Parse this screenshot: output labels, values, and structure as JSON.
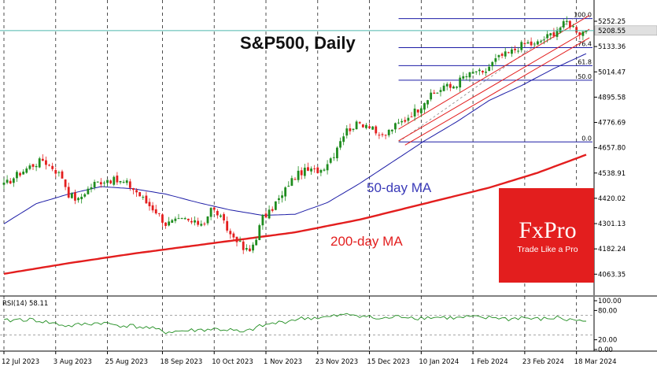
{
  "chart_data": {
    "type": "candlestick",
    "title": "S&P500, Daily",
    "price_axis": {
      "ticks": [
        "5252.25",
        "5133.36",
        "5014.47",
        "4895.58",
        "4776.69",
        "4657.80",
        "4538.91",
        "4420.02",
        "4301.13",
        "4182.24",
        "4063.35"
      ],
      "tick_values": [
        5252.25,
        5133.36,
        5014.47,
        4895.58,
        4776.69,
        4657.8,
        4538.91,
        4420.02,
        4301.13,
        4182.24,
        4063.35
      ],
      "ylim": [
        4020,
        5330
      ],
      "current_price": "5208.55",
      "current_value": 5208.55
    },
    "x_axis": {
      "ticks": [
        "12 Jul 2023",
        "3 Aug 2023",
        "25 Aug 2023",
        "18 Sep 2023",
        "10 Oct 2023",
        "1 Nov 2023",
        "23 Nov 2023",
        "15 Dec 2023",
        "10 Jan 2024",
        "1 Feb 2024",
        "23 Feb 2024",
        "18 Mar 2024"
      ],
      "tick_bars": [
        0,
        16,
        32,
        49,
        65,
        81,
        97,
        113,
        129,
        145,
        161,
        177
      ]
    },
    "series": [
      {
        "name": "50-day MA",
        "color": "#1c1ca6",
        "points": [
          [
            0,
            4300
          ],
          [
            10,
            4395
          ],
          [
            20,
            4440
          ],
          [
            30,
            4475
          ],
          [
            40,
            4465
          ],
          [
            50,
            4440
          ],
          [
            60,
            4400
          ],
          [
            70,
            4365
          ],
          [
            80,
            4340
          ],
          [
            90,
            4345
          ],
          [
            100,
            4400
          ],
          [
            110,
            4490
          ],
          [
            120,
            4590
          ],
          [
            130,
            4690
          ],
          [
            140,
            4780
          ],
          [
            150,
            4880
          ],
          [
            160,
            4950
          ],
          [
            170,
            5030
          ],
          [
            180,
            5100
          ]
        ]
      },
      {
        "name": "200-day MA",
        "color": "#e31e1e",
        "points": [
          [
            0,
            4065
          ],
          [
            20,
            4115
          ],
          [
            40,
            4160
          ],
          [
            60,
            4200
          ],
          [
            75,
            4230
          ],
          [
            90,
            4260
          ],
          [
            110,
            4320
          ],
          [
            130,
            4395
          ],
          [
            150,
            4470
          ],
          [
            165,
            4540
          ],
          [
            180,
            4625
          ]
        ]
      }
    ],
    "ohlc_path": [
      [
        0,
        4480
      ],
      [
        4,
        4530
      ],
      [
        8,
        4570
      ],
      [
        12,
        4600
      ],
      [
        15,
        4565
      ],
      [
        18,
        4520
      ],
      [
        20,
        4440
      ],
      [
        23,
        4410
      ],
      [
        25,
        4450
      ],
      [
        28,
        4490
      ],
      [
        32,
        4510
      ],
      [
        35,
        4500
      ],
      [
        38,
        4490
      ],
      [
        41,
        4450
      ],
      [
        44,
        4400
      ],
      [
        47,
        4360
      ],
      [
        50,
        4300
      ],
      [
        53,
        4310
      ],
      [
        56,
        4320
      ],
      [
        59,
        4300
      ],
      [
        62,
        4310
      ],
      [
        64,
        4370
      ],
      [
        66,
        4350
      ],
      [
        68,
        4300
      ],
      [
        70,
        4250
      ],
      [
        72,
        4230
      ],
      [
        74,
        4180
      ],
      [
        76,
        4170
      ],
      [
        78,
        4240
      ],
      [
        80,
        4330
      ],
      [
        82,
        4350
      ],
      [
        84,
        4400
      ],
      [
        86,
        4430
      ],
      [
        88,
        4490
      ],
      [
        90,
        4520
      ],
      [
        92,
        4545
      ],
      [
        94,
        4550
      ],
      [
        96,
        4550
      ],
      [
        98,
        4555
      ],
      [
        100,
        4590
      ],
      [
        102,
        4630
      ],
      [
        104,
        4700
      ],
      [
        106,
        4740
      ],
      [
        108,
        4760
      ],
      [
        110,
        4770
      ],
      [
        112,
        4770
      ],
      [
        114,
        4760
      ],
      [
        116,
        4700
      ],
      [
        118,
        4720
      ],
      [
        120,
        4750
      ],
      [
        122,
        4770
      ],
      [
        124,
        4790
      ],
      [
        126,
        4820
      ],
      [
        128,
        4840
      ],
      [
        130,
        4880
      ],
      [
        132,
        4900
      ],
      [
        134,
        4920
      ],
      [
        136,
        4950
      ],
      [
        138,
        4940
      ],
      [
        140,
        4960
      ],
      [
        142,
        4990
      ],
      [
        144,
        5000
      ],
      [
        146,
        5020
      ],
      [
        148,
        5000
      ],
      [
        150,
        5040
      ],
      [
        152,
        5070
      ],
      [
        154,
        5090
      ],
      [
        156,
        5100
      ],
      [
        158,
        5120
      ],
      [
        160,
        5140
      ],
      [
        162,
        5150
      ],
      [
        164,
        5140
      ],
      [
        166,
        5160
      ],
      [
        168,
        5180
      ],
      [
        170,
        5200
      ],
      [
        172,
        5225
      ],
      [
        174,
        5250
      ],
      [
        176,
        5225
      ],
      [
        178,
        5200
      ],
      [
        180,
        5208
      ]
    ],
    "annotations": [
      {
        "text": "50-day MA",
        "color": "#3a3ab8"
      },
      {
        "text": "200-day MA",
        "color": "#e31e1e"
      }
    ],
    "fibonacci": {
      "levels": [
        "100.0",
        "76.4",
        "61.8",
        "50.0",
        "0.0"
      ],
      "level_values": [
        100.0,
        76.4,
        61.8,
        50.0,
        0.0
      ],
      "low": 4685,
      "high": 5265
    },
    "channel_color": "#e31e1e",
    "rsi": {
      "label": "RSI(14) 58.11",
      "ticks": [
        "100.00",
        "80.00",
        "20.00",
        "0.00"
      ],
      "tick_values": [
        100,
        80,
        20,
        0
      ],
      "levels": [
        70,
        30
      ],
      "value": 58.11,
      "points": [
        [
          0,
          58
        ],
        [
          5,
          62
        ],
        [
          10,
          60
        ],
        [
          15,
          54
        ],
        [
          20,
          48
        ],
        [
          25,
          52
        ],
        [
          30,
          55
        ],
        [
          35,
          50
        ],
        [
          40,
          48
        ],
        [
          45,
          44
        ],
        [
          50,
          36
        ],
        [
          55,
          38
        ],
        [
          60,
          40
        ],
        [
          65,
          42
        ],
        [
          70,
          40
        ],
        [
          74,
          34
        ],
        [
          78,
          45
        ],
        [
          82,
          52
        ],
        [
          86,
          56
        ],
        [
          90,
          62
        ],
        [
          95,
          65
        ],
        [
          100,
          66
        ],
        [
          104,
          70
        ],
        [
          108,
          72
        ],
        [
          112,
          68
        ],
        [
          116,
          62
        ],
        [
          120,
          66
        ],
        [
          124,
          68
        ],
        [
          128,
          65
        ],
        [
          132,
          66
        ],
        [
          136,
          66
        ],
        [
          140,
          64
        ],
        [
          144,
          67
        ],
        [
          148,
          64
        ],
        [
          152,
          66
        ],
        [
          156,
          62
        ],
        [
          160,
          66
        ],
        [
          164,
          62
        ],
        [
          168,
          63
        ],
        [
          172,
          66
        ],
        [
          174,
          60
        ],
        [
          176,
          62
        ],
        [
          178,
          58
        ],
        [
          180,
          58
        ]
      ]
    }
  },
  "logo": {
    "brand": "FxPro",
    "tagline": "Trade Like a Pro",
    "bg": "#e31e1e"
  },
  "colors": {
    "bull": "#1e8c1e",
    "bear": "#e31e1e",
    "grid": "#222222",
    "current_line": "#4db6ac",
    "rsi_line": "#1e8c1e"
  }
}
